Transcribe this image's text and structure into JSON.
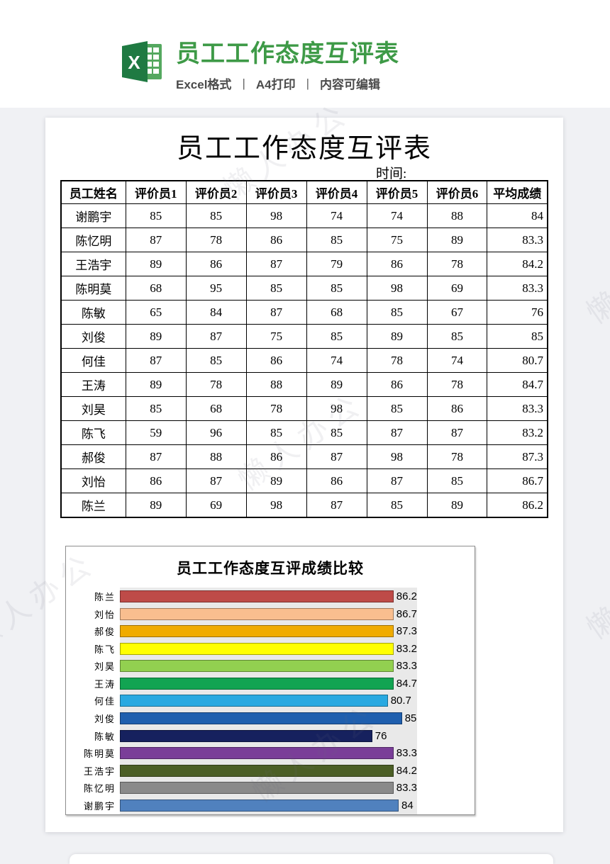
{
  "header": {
    "title": "员工工作态度互评表",
    "subtitle_parts": [
      "Excel格式",
      "A4打印",
      "内容可编辑"
    ],
    "separator": "|",
    "accent_color": "#3e9a47",
    "icon": "excel-icon",
    "icon_letter": "X"
  },
  "page": {
    "doc_title": "员工工作态度互评表",
    "time_label": "时间:",
    "watermark_text": "懒人办公"
  },
  "table": {
    "columns": [
      "员工姓名",
      "评价员1",
      "评价员2",
      "评价员3",
      "评价员4",
      "评价员5",
      "评价员6",
      "平均成绩"
    ],
    "rows": [
      {
        "name": "谢鹏宇",
        "scores": [
          85,
          85,
          98,
          74,
          74,
          88
        ],
        "avg": "84"
      },
      {
        "name": "陈忆明",
        "scores": [
          87,
          78,
          86,
          85,
          75,
          89
        ],
        "avg": "83.3"
      },
      {
        "name": "王浩宇",
        "scores": [
          89,
          86,
          87,
          79,
          86,
          78
        ],
        "avg": "84.2"
      },
      {
        "name": "陈明莫",
        "scores": [
          68,
          95,
          85,
          85,
          98,
          69
        ],
        "avg": "83.3"
      },
      {
        "name": "陈敏",
        "scores": [
          65,
          84,
          87,
          68,
          85,
          67
        ],
        "avg": "76"
      },
      {
        "name": "刘俊",
        "scores": [
          89,
          87,
          75,
          85,
          89,
          85
        ],
        "avg": "85"
      },
      {
        "name": "何佳",
        "scores": [
          87,
          85,
          86,
          74,
          78,
          74
        ],
        "avg": "80.7"
      },
      {
        "name": "王涛",
        "scores": [
          89,
          78,
          88,
          89,
          86,
          78
        ],
        "avg": "84.7"
      },
      {
        "name": "刘昊",
        "scores": [
          85,
          68,
          78,
          98,
          85,
          86
        ],
        "avg": "83.3"
      },
      {
        "name": "陈飞",
        "scores": [
          59,
          96,
          85,
          85,
          87,
          87
        ],
        "avg": "83.2"
      },
      {
        "name": "郝俊",
        "scores": [
          87,
          88,
          86,
          87,
          98,
          78
        ],
        "avg": "87.3"
      },
      {
        "name": "刘怡",
        "scores": [
          86,
          87,
          89,
          86,
          87,
          85
        ],
        "avg": "86.7"
      },
      {
        "name": "陈兰",
        "scores": [
          89,
          69,
          98,
          87,
          85,
          89
        ],
        "avg": "86.2"
      }
    ]
  },
  "chart_data": {
    "type": "bar",
    "orientation": "horizontal",
    "title": "员工工作态度互评成绩比较",
    "categories": [
      "陈兰",
      "刘怡",
      "郝俊",
      "陈飞",
      "刘昊",
      "王涛",
      "何佳",
      "刘俊",
      "陈敏",
      "陈明莫",
      "王浩宇",
      "陈忆明",
      "谢鹏宇"
    ],
    "values": [
      86.2,
      86.7,
      87.3,
      83.2,
      83.3,
      84.7,
      80.7,
      85,
      76,
      83.3,
      84.2,
      83.3,
      84
    ],
    "labels": [
      "86.2",
      "86.7",
      "87.3",
      "83.2",
      "83.3",
      "84.7",
      "80.7",
      "85",
      "76",
      "83.3",
      "84.2",
      "83.3",
      "84"
    ],
    "colors": [
      "#be4b48",
      "#f9be8f",
      "#f0ab00",
      "#ffff00",
      "#92d050",
      "#12a452",
      "#29a9e1",
      "#1f5fae",
      "#16215e",
      "#7a3e98",
      "#4c5f26",
      "#8a8a8a",
      "#5081be"
    ],
    "xlim": [
      0,
      90
    ],
    "plot_bg": "#e9e9e9",
    "value_labels_position": "outside-end",
    "axis_visible": false,
    "legend": false,
    "xlabel": "",
    "ylabel": ""
  }
}
